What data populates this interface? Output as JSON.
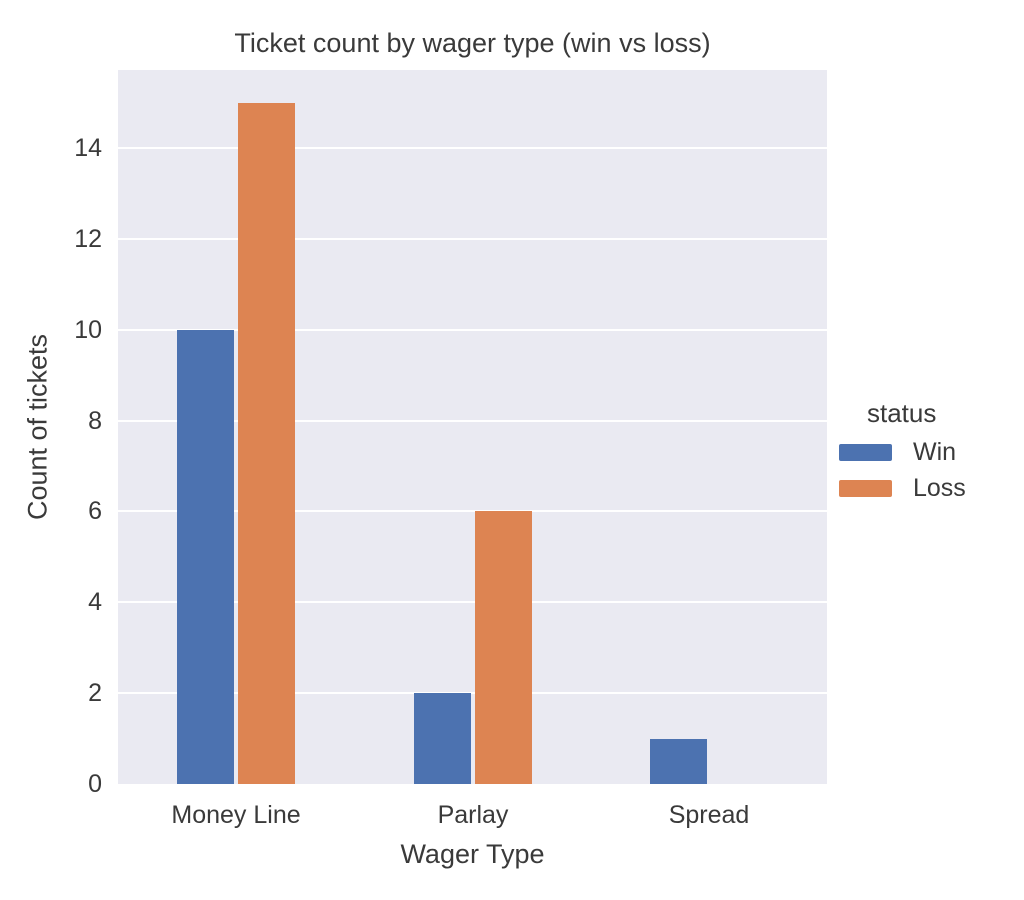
{
  "chart_data": {
    "type": "bar",
    "title": "Ticket count by wager type (win vs loss)",
    "xlabel": "Wager Type",
    "ylabel": "Count of tickets",
    "categories": [
      "Money Line",
      "Parlay",
      "Spread"
    ],
    "series": [
      {
        "name": "Win",
        "color": "#4C72B0",
        "values": [
          10,
          2,
          1
        ]
      },
      {
        "name": "Loss",
        "color": "#DD8452",
        "values": [
          15,
          6,
          0
        ]
      }
    ],
    "legend_title": "status",
    "legend_position": "right-outside",
    "yticks": [
      0,
      2,
      4,
      6,
      8,
      10,
      12,
      14
    ],
    "ylim": [
      0,
      15.72
    ],
    "grid": true,
    "colors": {
      "plot_bg": "#EAEAF2",
      "grid": "#FFFFFF",
      "text": "#3A3A3A"
    }
  }
}
